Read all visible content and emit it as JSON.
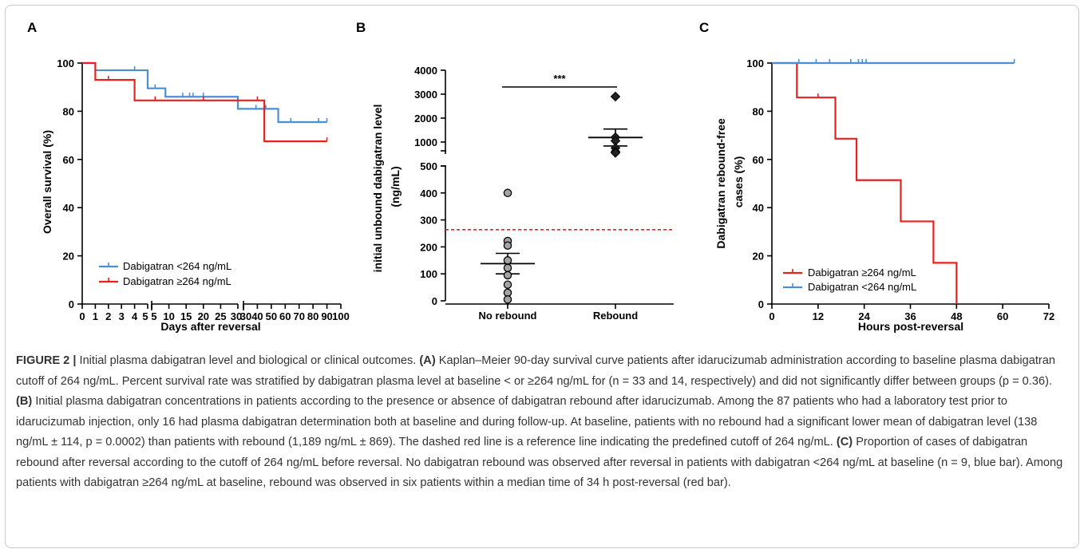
{
  "figure": {
    "label": "FIGURE 2 |",
    "caption_title": "Initial plasma dabigatran level and biological or clinical outcomes.",
    "caption_parts": [
      {
        "label": "(A)",
        "text": "Kaplan–Meier 90-day survival curve patients after idarucizumab administration according to baseline plasma dabigatran cutoff of 264 ng/mL. Percent survival rate was stratified by dabigatran plasma level at baseline < or ≥264 ng/mL for (n = 33 and 14, respectively) and did not significantly differ between groups (p = 0.36)."
      },
      {
        "label": "(B)",
        "text": "Initial plasma dabigatran concentrations in patients according to the presence or absence of dabigatran rebound after idarucizumab. Among the 87 patients who had a laboratory test prior to idarucizumab injection, only 16 had plasma dabigatran determination both at baseline and during follow-up. At baseline, patients with no rebound had a significant lower mean of dabigatran level (138 ng/mL ± 114, p = 0.0002) than patients with rebound (1,189 ng/mL ± 869). The dashed red line is a reference line indicating the predefined cutoff of 264 ng/mL."
      },
      {
        "label": "(C)",
        "text": "Proportion of cases of dabigatran rebound after reversal according to the cutoff of 264 ng/mL before reversal. No dabigatran rebound was observed after reversal in patients with dabigatran <264 ng/mL at baseline (n = 9, blue bar). Among patients with dabigatran ≥264 ng/mL at baseline, rebound was observed in six patients within a median time of 34 h post-reversal (red bar)."
      }
    ]
  },
  "colors": {
    "blue": "#4a8fd6",
    "red": "#e8211e",
    "gray": "#a3a3a3",
    "black": "#000000"
  },
  "chart_data": [
    {
      "panel": "A",
      "type": "line",
      "subtype": "kaplan-meier step",
      "ylabel": "Overall survival (%)",
      "xlabel": "Days after reversal",
      "ylim": [
        0,
        100
      ],
      "yticks": [
        0,
        20,
        40,
        60,
        80,
        100
      ],
      "xticks": [
        "0",
        "1",
        "2",
        "3",
        "4",
        "5",
        "5",
        "10",
        "15",
        "20",
        "25",
        "30",
        "30",
        "40",
        "50",
        "60",
        "70",
        "80",
        "90",
        "100"
      ],
      "x_axis_note": "broken x axis: 0–5, 5–30, 30–100",
      "legend_position": "bottom-left",
      "series": [
        {
          "name": "Dabigatran <264 ng/mL",
          "color": "blue",
          "steps": [
            [
              0,
              100
            ],
            [
              1,
              97
            ],
            [
              5,
              89.5
            ],
            [
              9,
              86
            ],
            [
              30,
              81
            ],
            [
              55,
              75.5
            ],
            [
              90,
              75.5
            ]
          ],
          "censored": [
            [
              4,
              97
            ],
            [
              6,
              89.5
            ],
            [
              14,
              86
            ],
            [
              16,
              86
            ],
            [
              17,
              86
            ],
            [
              20,
              86
            ],
            [
              39,
              81
            ],
            [
              46,
              81
            ],
            [
              64,
              75.5
            ],
            [
              84,
              75.5
            ],
            [
              90,
              75.5
            ]
          ]
        },
        {
          "name": "Dabigatran ≥264 ng/mL",
          "color": "red",
          "steps": [
            [
              0,
              100
            ],
            [
              1,
              93
            ],
            [
              4,
              84.5
            ],
            [
              45,
              67.5
            ],
            [
              90,
              67.5
            ]
          ],
          "censored": [
            [
              2,
              93
            ],
            [
              6,
              84.5
            ],
            [
              20,
              84.5
            ],
            [
              40,
              84.5
            ],
            [
              90,
              67.5
            ]
          ]
        }
      ]
    },
    {
      "panel": "B",
      "type": "scatter",
      "ylabel": "initial unbound dabigatran level (ng/mL)",
      "categories": [
        "No rebound",
        "Rebound"
      ],
      "y_axis_note": "broken y axis: 0–500 and 500–4000",
      "yticks_lower": [
        0,
        100,
        200,
        300,
        400,
        500
      ],
      "yticks_upper": [
        1000,
        2000,
        3000,
        4000
      ],
      "reference_line": 264,
      "significance": "***",
      "series": [
        {
          "name": "No rebound",
          "marker": "circle",
          "values": [
            400,
            222,
            205,
            150,
            122,
            95,
            60,
            30,
            5
          ],
          "mean": 138,
          "sem": 38
        },
        {
          "name": "Rebound",
          "marker": "diamond",
          "values": [
            2900,
            1200,
            1050,
            750,
            600,
            550
          ],
          "mean": 1189,
          "sem": 355
        }
      ]
    },
    {
      "panel": "C",
      "type": "line",
      "subtype": "kaplan-meier step",
      "ylabel": "Dabigatran rebound-free cases (%)",
      "xlabel": "Hours post-reversal",
      "ylim": [
        0,
        100
      ],
      "xlim": [
        0,
        72
      ],
      "yticks": [
        0,
        20,
        40,
        60,
        80,
        100
      ],
      "xticks": [
        0,
        12,
        24,
        36,
        48,
        60,
        72
      ],
      "legend_position": "bottom-left",
      "series": [
        {
          "name": "Dabigatran ≥264 ng/mL",
          "color": "red",
          "steps": [
            [
              0,
              100
            ],
            [
              6.5,
              85.7
            ],
            [
              16.5,
              68.6
            ],
            [
              22,
              51.4
            ],
            [
              33.5,
              34.3
            ],
            [
              42,
              17.1
            ],
            [
              48,
              0
            ]
          ],
          "censored": [
            [
              12,
              85.7
            ]
          ]
        },
        {
          "name": "Dabigatran <264 ng/mL",
          "color": "blue",
          "steps": [
            [
              0,
              100
            ],
            [
              63,
              100
            ]
          ],
          "censored": [
            [
              7,
              100
            ],
            [
              11.5,
              100
            ],
            [
              15,
              100
            ],
            [
              20.5,
              100
            ],
            [
              22.5,
              100
            ],
            [
              23.5,
              100
            ],
            [
              24.5,
              100
            ],
            [
              63,
              100
            ]
          ]
        }
      ]
    }
  ]
}
